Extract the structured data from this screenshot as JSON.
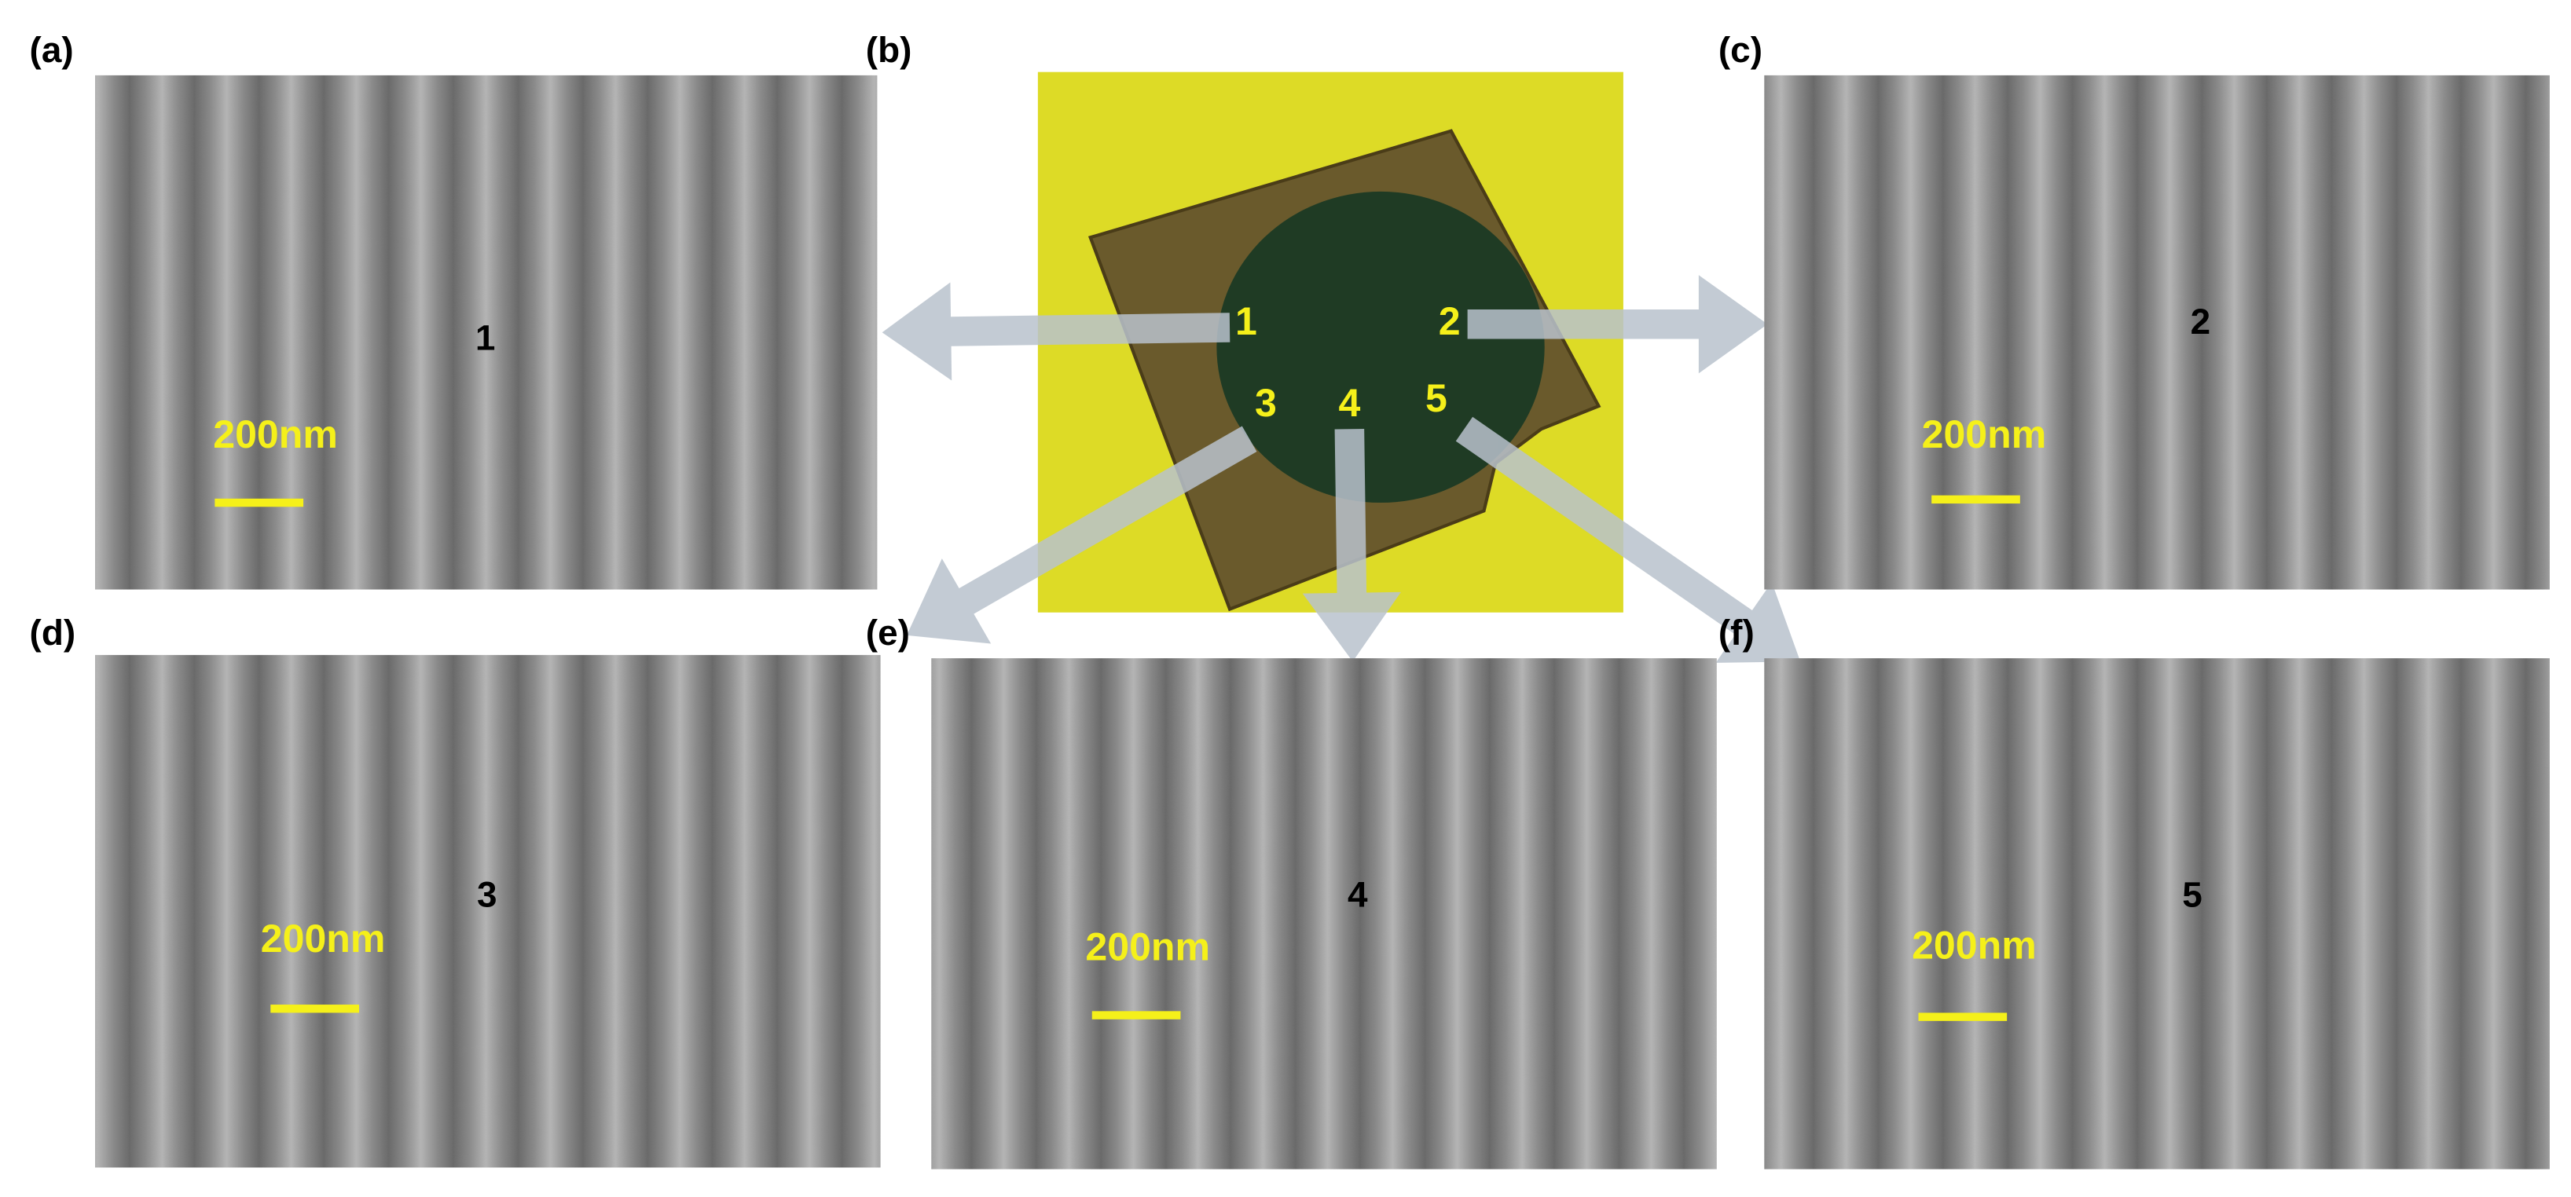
{
  "panels": [
    {
      "label": "(a)",
      "marker": "1",
      "scale_bar": "200nm"
    },
    {
      "label": "(c)",
      "marker": "2",
      "scale_bar": "200nm"
    },
    {
      "label": "(d)",
      "marker": "3",
      "scale_bar": "200nm"
    },
    {
      "label": "(e)",
      "marker": "4",
      "scale_bar": "200nm"
    },
    {
      "label": "(f)",
      "marker": "5",
      "scale_bar": "200nm"
    }
  ],
  "photo": {
    "label": "(b)",
    "points": [
      "1",
      "2",
      "3",
      "4",
      "5"
    ]
  }
}
